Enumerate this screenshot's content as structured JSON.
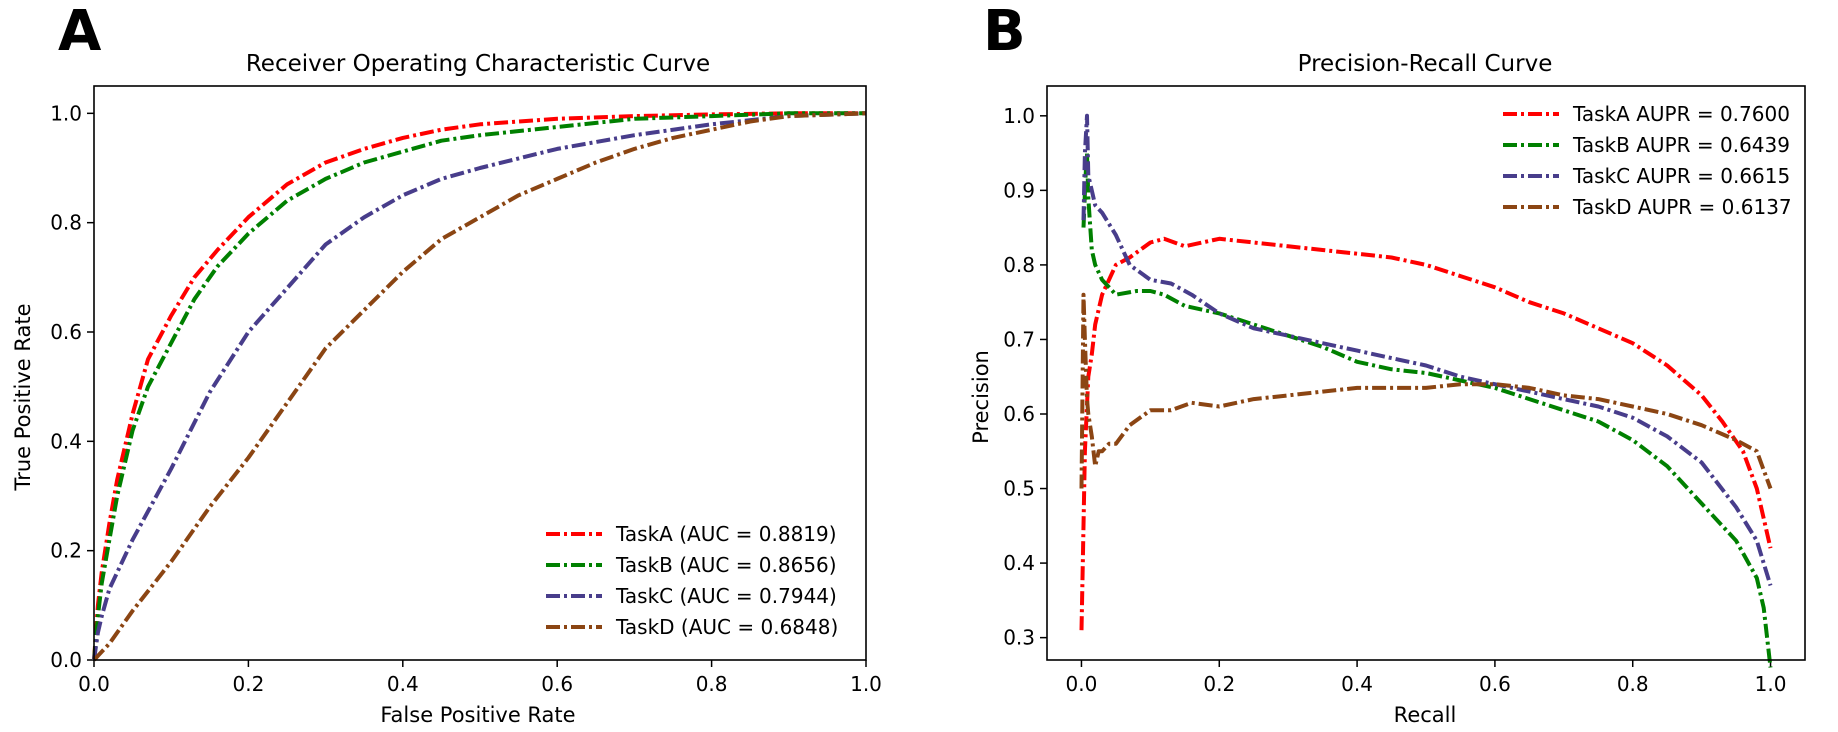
{
  "chart_data": [
    {
      "panel_label": "A",
      "type": "line",
      "title": "Receiver Operating Characteristic Curve",
      "xlabel": "False Positive Rate",
      "ylabel": "True Positive Rate",
      "xlim": [
        0,
        1
      ],
      "ylim": [
        0,
        1.05
      ],
      "xticks": [
        0.0,
        0.2,
        0.4,
        0.6,
        0.8,
        1.0
      ],
      "yticks": [
        0.0,
        0.2,
        0.4,
        0.6,
        0.8,
        1.0
      ],
      "xtick_labels": [
        "0.0",
        "0.2",
        "0.4",
        "0.6",
        "0.8",
        "1.0"
      ],
      "ytick_labels": [
        "0.0",
        "0.2",
        "0.4",
        "0.6",
        "0.8",
        "1.0"
      ],
      "grid": false,
      "legend_position": "lower-right",
      "series": [
        {
          "name": "TaskA (AUC = 0.8819)",
          "color": "#ff0000",
          "x": [
            0,
            0.005,
            0.01,
            0.02,
            0.03,
            0.05,
            0.07,
            0.1,
            0.13,
            0.16,
            0.2,
            0.25,
            0.3,
            0.35,
            0.4,
            0.45,
            0.5,
            0.6,
            0.7,
            0.8,
            0.9,
            1.0
          ],
          "y": [
            0,
            0.1,
            0.16,
            0.25,
            0.33,
            0.45,
            0.55,
            0.63,
            0.7,
            0.75,
            0.81,
            0.87,
            0.91,
            0.935,
            0.955,
            0.97,
            0.98,
            0.99,
            0.995,
            0.998,
            1.0,
            1.0
          ]
        },
        {
          "name": "TaskB (AUC = 0.8656)",
          "color": "#008000",
          "x": [
            0,
            0.005,
            0.01,
            0.02,
            0.03,
            0.05,
            0.07,
            0.1,
            0.13,
            0.16,
            0.2,
            0.25,
            0.3,
            0.35,
            0.4,
            0.45,
            0.5,
            0.6,
            0.7,
            0.8,
            0.9,
            1.0
          ],
          "y": [
            0,
            0.08,
            0.14,
            0.22,
            0.3,
            0.42,
            0.5,
            0.58,
            0.66,
            0.72,
            0.78,
            0.84,
            0.88,
            0.91,
            0.93,
            0.95,
            0.96,
            0.975,
            0.99,
            0.995,
            1.0,
            1.0
          ]
        },
        {
          "name": "TaskC (AUC = 0.7944)",
          "color": "#483d8b",
          "x": [
            0,
            0.005,
            0.01,
            0.02,
            0.05,
            0.1,
            0.15,
            0.2,
            0.25,
            0.3,
            0.35,
            0.4,
            0.45,
            0.5,
            0.6,
            0.7,
            0.8,
            0.9,
            1.0
          ],
          "y": [
            0,
            0.05,
            0.08,
            0.13,
            0.22,
            0.35,
            0.49,
            0.6,
            0.68,
            0.76,
            0.81,
            0.85,
            0.88,
            0.9,
            0.935,
            0.96,
            0.98,
            0.995,
            1.0
          ]
        },
        {
          "name": "TaskD (AUC = 0.6848)",
          "color": "#8b4513",
          "x": [
            0,
            0.02,
            0.05,
            0.1,
            0.15,
            0.2,
            0.25,
            0.3,
            0.35,
            0.4,
            0.45,
            0.5,
            0.55,
            0.6,
            0.65,
            0.7,
            0.75,
            0.8,
            0.85,
            0.9,
            1.0
          ],
          "y": [
            0,
            0.03,
            0.09,
            0.18,
            0.28,
            0.37,
            0.47,
            0.57,
            0.64,
            0.71,
            0.77,
            0.81,
            0.85,
            0.88,
            0.91,
            0.935,
            0.955,
            0.97,
            0.985,
            0.995,
            1.0
          ]
        }
      ]
    },
    {
      "panel_label": "B",
      "type": "line",
      "title": "Precision-Recall Curve",
      "xlabel": "Recall",
      "ylabel": "Precision",
      "xlim": [
        -0.05,
        1.05
      ],
      "ylim": [
        0.27,
        1.04
      ],
      "xticks": [
        0.0,
        0.2,
        0.4,
        0.6,
        0.8,
        1.0
      ],
      "yticks": [
        0.3,
        0.4,
        0.5,
        0.6,
        0.7,
        0.8,
        0.9,
        1.0
      ],
      "xtick_labels": [
        "0.0",
        "0.2",
        "0.4",
        "0.6",
        "0.8",
        "1.0"
      ],
      "ytick_labels": [
        "0.3",
        "0.4",
        "0.5",
        "0.6",
        "0.7",
        "0.8",
        "0.9",
        "1.0"
      ],
      "grid": false,
      "legend_position": "upper-right",
      "series": [
        {
          "name": "TaskA AUPR = 0.7600",
          "color": "#ff0000",
          "x": [
            0.0,
            0.002,
            0.005,
            0.01,
            0.015,
            0.02,
            0.03,
            0.05,
            0.07,
            0.1,
            0.12,
            0.15,
            0.2,
            0.25,
            0.3,
            0.35,
            0.4,
            0.45,
            0.5,
            0.55,
            0.6,
            0.65,
            0.7,
            0.75,
            0.8,
            0.85,
            0.9,
            0.93,
            0.96,
            0.98,
            0.99,
            1.0
          ],
          "y": [
            0.31,
            0.4,
            0.55,
            0.65,
            0.68,
            0.72,
            0.76,
            0.8,
            0.81,
            0.83,
            0.835,
            0.825,
            0.835,
            0.83,
            0.825,
            0.82,
            0.815,
            0.81,
            0.8,
            0.785,
            0.77,
            0.75,
            0.735,
            0.715,
            0.695,
            0.665,
            0.625,
            0.59,
            0.55,
            0.5,
            0.46,
            0.42
          ]
        },
        {
          "name": "TaskB AUPR = 0.6439",
          "color": "#008000",
          "x": [
            0.003,
            0.006,
            0.008,
            0.01,
            0.015,
            0.02,
            0.03,
            0.05,
            0.08,
            0.1,
            0.12,
            0.15,
            0.2,
            0.25,
            0.3,
            0.35,
            0.4,
            0.45,
            0.5,
            0.55,
            0.6,
            0.65,
            0.7,
            0.75,
            0.8,
            0.85,
            0.9,
            0.95,
            0.98,
            0.99,
            1.0
          ],
          "y": [
            0.85,
            0.92,
            0.95,
            0.89,
            0.82,
            0.8,
            0.78,
            0.76,
            0.765,
            0.765,
            0.76,
            0.745,
            0.735,
            0.72,
            0.705,
            0.69,
            0.67,
            0.66,
            0.655,
            0.645,
            0.635,
            0.62,
            0.605,
            0.59,
            0.565,
            0.53,
            0.48,
            0.43,
            0.38,
            0.34,
            0.26
          ]
        },
        {
          "name": "TaskC AUPR = 0.6615",
          "color": "#483d8b",
          "x": [
            0.003,
            0.005,
            0.008,
            0.01,
            0.015,
            0.02,
            0.03,
            0.05,
            0.07,
            0.1,
            0.13,
            0.16,
            0.2,
            0.25,
            0.3,
            0.35,
            0.4,
            0.45,
            0.5,
            0.55,
            0.6,
            0.65,
            0.7,
            0.75,
            0.8,
            0.85,
            0.9,
            0.95,
            0.98,
            1.0
          ],
          "y": [
            0.86,
            0.95,
            1.0,
            0.92,
            0.9,
            0.88,
            0.87,
            0.84,
            0.8,
            0.78,
            0.775,
            0.76,
            0.735,
            0.715,
            0.705,
            0.695,
            0.685,
            0.675,
            0.665,
            0.65,
            0.64,
            0.63,
            0.62,
            0.61,
            0.595,
            0.57,
            0.535,
            0.475,
            0.43,
            0.37
          ]
        },
        {
          "name": "TaskD AUPR = 0.6137",
          "color": "#8b4513",
          "x": [
            0.0,
            0.003,
            0.005,
            0.008,
            0.01,
            0.015,
            0.02,
            0.025,
            0.03,
            0.04,
            0.05,
            0.07,
            0.1,
            0.13,
            0.16,
            0.2,
            0.25,
            0.3,
            0.35,
            0.4,
            0.45,
            0.5,
            0.55,
            0.6,
            0.65,
            0.7,
            0.75,
            0.8,
            0.85,
            0.9,
            0.95,
            0.98,
            1.0
          ],
          "y": [
            0.5,
            0.76,
            0.7,
            0.62,
            0.6,
            0.57,
            0.53,
            0.55,
            0.55,
            0.56,
            0.56,
            0.585,
            0.605,
            0.605,
            0.615,
            0.61,
            0.62,
            0.625,
            0.63,
            0.635,
            0.635,
            0.635,
            0.64,
            0.64,
            0.635,
            0.625,
            0.62,
            0.61,
            0.6,
            0.585,
            0.565,
            0.55,
            0.5
          ]
        }
      ]
    }
  ]
}
